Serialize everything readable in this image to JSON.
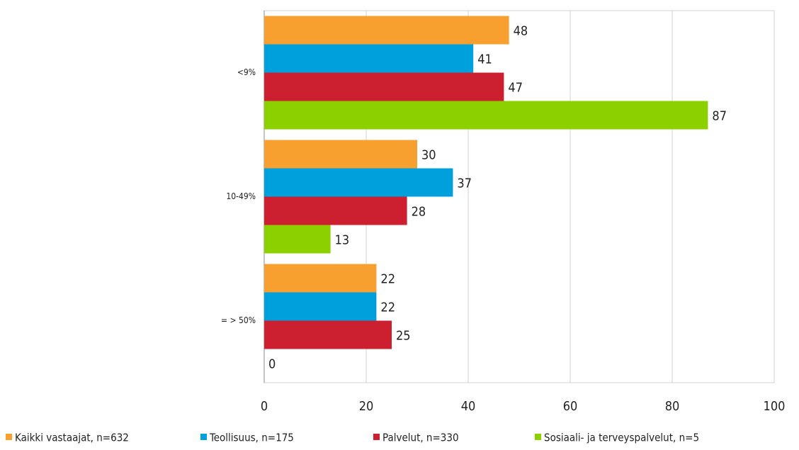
{
  "chart_data": {
    "type": "bar",
    "orientation": "horizontal",
    "categories": [
      "<9%",
      "10-49%",
      "= > 50%"
    ],
    "series": [
      {
        "name": "Kaikki vastaajat, n=632",
        "color": "#f7a030",
        "values": [
          48,
          30,
          22
        ]
      },
      {
        "name": "Teollisuus, n=175",
        "color": "#00a0dc",
        "values": [
          41,
          37,
          22
        ]
      },
      {
        "name": "Palvelut, n=330",
        "color": "#cc2030",
        "values": [
          47,
          28,
          25
        ]
      },
      {
        "name": "Sosiaali- ja terveyspalvelut, n=5",
        "color": "#8cd000",
        "values": [
          87,
          13,
          0
        ]
      }
    ],
    "xlim": [
      0,
      100
    ],
    "xticks": [
      0,
      20,
      40,
      60,
      80,
      100
    ],
    "grid": true,
    "legend": "bottom"
  }
}
